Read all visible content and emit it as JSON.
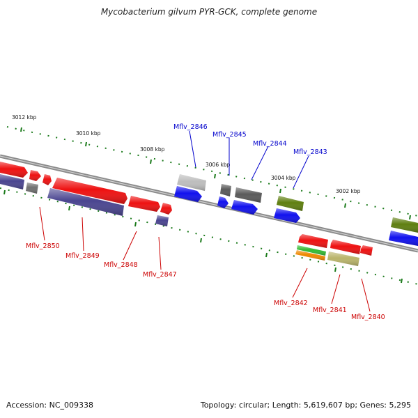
{
  "title": "Mycobacterium gilvum PYR-GCK, complete genome",
  "accession": "Accession: NC_009338",
  "topology": "Topology: circular; Length: 5,619,607 bp; Genes: 5,295",
  "colors": {
    "forward_label": "#0000cc",
    "reverse_label": "#cc0000",
    "red": "#ee1111",
    "blue": "#1111ee",
    "navy": "#4a4590",
    "olive": "#5f7f10",
    "gray": "#707070",
    "dark_gray": "#5a5a5a",
    "light_gray": "#bdbdbd",
    "khaki": "#b9b46a",
    "green": "#33bb33",
    "orange": "#ee8800",
    "tick": "#1a7a1a",
    "backbone": "#8a8a8a"
  },
  "ruler": {
    "labels": [
      "3012 kbp",
      "3010 kbp",
      "3008 kbp",
      "3006 kbp",
      "3004 kbp",
      "3002 kbp"
    ]
  },
  "gene_labels": {
    "forward": [
      "Mflv_2846",
      "Mflv_2845",
      "Mflv_2844",
      "Mflv_2843"
    ],
    "reverse": [
      "Mflv_2850",
      "Mflv_2849",
      "Mflv_2848",
      "Mflv_2847",
      "Mflv_2842",
      "Mflv_2841",
      "Mflv_2840"
    ]
  }
}
